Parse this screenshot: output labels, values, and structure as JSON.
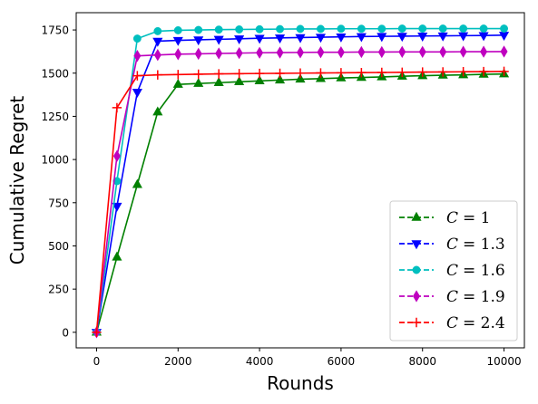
{
  "chart_data": {
    "type": "line",
    "title": "",
    "xlabel": "Rounds",
    "ylabel": "Cumulative Regret",
    "xlim": [
      -500,
      10500
    ],
    "ylim": [
      -90,
      1850
    ],
    "xticks": [
      0,
      2000,
      4000,
      6000,
      8000,
      10000
    ],
    "yticks": [
      0,
      250,
      500,
      750,
      1000,
      1250,
      1500,
      1750
    ],
    "grid": false,
    "legend_position": "lower-right",
    "x": [
      0,
      500,
      1000,
      1500,
      2000,
      2500,
      3000,
      3500,
      4000,
      4500,
      5000,
      5500,
      6000,
      6500,
      7000,
      7500,
      8000,
      8500,
      9000,
      9500,
      10000
    ],
    "series": [
      {
        "name": "C = 1",
        "color": "#008000",
        "marker": "triangle-up",
        "values": [
          0,
          435,
          855,
          1275,
          1435,
          1440,
          1445,
          1450,
          1455,
          1460,
          1465,
          1468,
          1472,
          1475,
          1478,
          1482,
          1485,
          1488,
          1490,
          1493,
          1495
        ]
      },
      {
        "name": "C = 1.3",
        "color": "#0000ff",
        "marker": "triangle-down",
        "values": [
          0,
          730,
          1390,
          1685,
          1690,
          1693,
          1696,
          1699,
          1702,
          1704,
          1706,
          1708,
          1710,
          1712,
          1713,
          1714,
          1715,
          1716,
          1717,
          1718,
          1720
        ]
      },
      {
        "name": "C = 1.6",
        "color": "#00bfbf",
        "marker": "circle",
        "values": [
          0,
          875,
          1700,
          1743,
          1748,
          1750,
          1752,
          1753,
          1754,
          1755,
          1756,
          1756,
          1757,
          1757,
          1757,
          1758,
          1758,
          1758,
          1758,
          1758,
          1758
        ]
      },
      {
        "name": "C = 1.9",
        "color": "#bf00bf",
        "marker": "diamond",
        "values": [
          0,
          1020,
          1600,
          1605,
          1610,
          1612,
          1614,
          1616,
          1618,
          1619,
          1620,
          1621,
          1621,
          1622,
          1622,
          1623,
          1623,
          1623,
          1624,
          1624,
          1625
        ]
      },
      {
        "name": "C = 2.4",
        "color": "#ff0000",
        "marker": "plus",
        "values": [
          0,
          1300,
          1485,
          1490,
          1492,
          1494,
          1496,
          1497,
          1498,
          1499,
          1500,
          1501,
          1502,
          1503,
          1504,
          1505,
          1506,
          1507,
          1508,
          1509,
          1510
        ]
      }
    ],
    "legend_labels": [
      {
        "sym": "C",
        "eq": "= 1"
      },
      {
        "sym": "C",
        "eq": "= 1.3"
      },
      {
        "sym": "C",
        "eq": "= 1.6"
      },
      {
        "sym": "C",
        "eq": "= 1.9"
      },
      {
        "sym": "C",
        "eq": "= 2.4"
      }
    ]
  }
}
